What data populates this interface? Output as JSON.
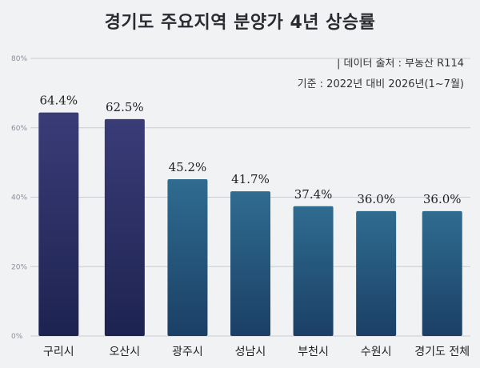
{
  "title": "경기도 주요지역 분양가 4년 상승률",
  "source": "| 데이터 출처 : 부동산 R114",
  "basis": "기준 : 2022년 대비 2026년(1~7월)",
  "colors": {
    "bar_first_top": "#3a3c78",
    "bar_first_bottom": "#1d2350",
    "bar_top": "#2f6c90",
    "bar_bottom": "#1b3f66",
    "gridline": "#c9ccd3",
    "tick_text": "#8a8e98"
  },
  "chart_data": {
    "type": "bar",
    "categories": [
      "구리시",
      "오산시",
      "광주시",
      "성남시",
      "부천시",
      "수원시",
      "경기도 전체"
    ],
    "values": [
      64.4,
      62.5,
      45.2,
      41.7,
      37.4,
      36.0,
      36.0
    ],
    "value_labels": [
      "64.4%",
      "62.5%",
      "45.2%",
      "41.7%",
      "37.4%",
      "36.0%",
      "36.0%"
    ],
    "ylim": [
      0,
      80
    ],
    "yticks": [
      0,
      20,
      40,
      60,
      80
    ],
    "ytick_labels": [
      "0%",
      "20%",
      "40%",
      "60%",
      "80%"
    ],
    "grid": true,
    "xlabel": "",
    "ylabel": ""
  }
}
